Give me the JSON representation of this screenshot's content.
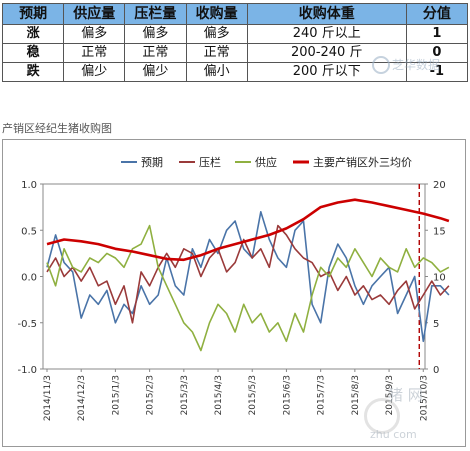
{
  "table": {
    "headers": [
      "预期",
      "供应量",
      "压栏量",
      "收购量",
      "收购体重",
      "分值"
    ],
    "rows": [
      [
        "涨",
        "偏多",
        "偏多",
        "偏多",
        "240 斤以上",
        "1"
      ],
      [
        "稳",
        "正常",
        "正常",
        "正常",
        "200-240 斤",
        "0"
      ],
      [
        "跌",
        "偏少",
        "偏少",
        "偏小",
        "200 斤以下",
        "-1"
      ]
    ]
  },
  "watermark": {
    "top_text": "芝华数据",
    "bottom_logo": "猪 网",
    "bottom_url": "zhu  com"
  },
  "chart_caption": "产销区经纪生猪收购图",
  "colors": {
    "forecast": "#4a74a8",
    "pressure": "#9a3a3a",
    "supply": "#8fb040",
    "price": "#cc0000",
    "header_bg": "#7bb4e6"
  },
  "chart_data": {
    "type": "line",
    "title": "",
    "x_tick_labels": [
      "2014/11/3",
      "2014/12/3",
      "2015/1/3",
      "2015/2/3",
      "2015/3/3",
      "2015/4/3",
      "2015/5/3",
      "2015/6/3",
      "2015/7/3",
      "2015/8/3",
      "2015/9/3",
      "2015/10/3"
    ],
    "y_left": {
      "range": [
        -1.0,
        1.0
      ],
      "ticks": [
        "1.0",
        "0.5",
        "0.0",
        "-0.5",
        "-1.0"
      ]
    },
    "y_right": {
      "range": [
        0,
        20
      ],
      "ticks": [
        "20",
        "15",
        "10",
        "5",
        "0"
      ]
    },
    "legend_position": "top",
    "grid": false,
    "marker_line": {
      "x": "2015/10/3",
      "style": "dashed"
    },
    "x_index_count": 12,
    "series": [
      {
        "name": "预期",
        "axis": "left",
        "color_key": "forecast",
        "x": [
          0,
          0.25,
          0.5,
          0.75,
          1,
          1.25,
          1.5,
          1.75,
          2,
          2.25,
          2.5,
          2.75,
          3,
          3.25,
          3.5,
          3.75,
          4,
          4.25,
          4.5,
          4.75,
          5,
          5.25,
          5.5,
          5.75,
          6,
          6.25,
          6.5,
          6.75,
          7,
          7.25,
          7.5,
          7.75,
          8,
          8.25,
          8.5,
          8.75,
          9,
          9.25,
          9.5,
          9.75,
          10,
          10.25,
          10.5,
          10.75,
          11,
          11.25,
          11.5,
          11.75
        ],
        "values": [
          0.1,
          0.45,
          0.15,
          0.05,
          -0.45,
          -0.2,
          -0.3,
          -0.15,
          -0.5,
          -0.3,
          -0.4,
          -0.1,
          -0.3,
          -0.2,
          0.2,
          -0.1,
          -0.2,
          0.3,
          0.1,
          0.4,
          0.25,
          0.5,
          0.6,
          0.3,
          0.2,
          0.7,
          0.4,
          0.2,
          0.1,
          0.5,
          0.6,
          -0.3,
          -0.5,
          0.1,
          0.35,
          0.2,
          -0.1,
          -0.3,
          -0.1,
          0.0,
          0.1,
          -0.4,
          -0.2,
          0.0,
          -0.7,
          -0.1,
          -0.1,
          -0.2
        ]
      },
      {
        "name": "压栏",
        "axis": "left",
        "color_key": "pressure",
        "x": [
          0,
          0.25,
          0.5,
          0.75,
          1,
          1.25,
          1.5,
          1.75,
          2,
          2.25,
          2.5,
          2.75,
          3,
          3.25,
          3.5,
          3.75,
          4,
          4.25,
          4.5,
          4.75,
          5,
          5.25,
          5.5,
          5.75,
          6,
          6.25,
          6.5,
          6.75,
          7,
          7.25,
          7.5,
          7.75,
          8,
          8.25,
          8.5,
          8.75,
          9,
          9.25,
          9.5,
          9.75,
          10,
          10.25,
          10.5,
          10.75,
          11,
          11.25,
          11.5,
          11.75
        ],
        "values": [
          0.05,
          0.2,
          0.0,
          0.1,
          -0.05,
          0.1,
          -0.1,
          -0.05,
          -0.3,
          -0.1,
          -0.5,
          0.05,
          -0.1,
          0.1,
          0.25,
          0.1,
          0.3,
          0.25,
          0.0,
          0.2,
          0.3,
          0.05,
          0.15,
          0.4,
          0.2,
          0.3,
          0.1,
          0.55,
          0.45,
          0.3,
          0.2,
          0.15,
          0.0,
          0.05,
          -0.15,
          0.0,
          -0.2,
          -0.1,
          -0.25,
          -0.2,
          -0.3,
          -0.15,
          -0.05,
          -0.35,
          -0.2,
          -0.05,
          -0.2,
          -0.1
        ]
      },
      {
        "name": "供应",
        "axis": "left",
        "color_key": "supply",
        "x": [
          0,
          0.25,
          0.5,
          0.75,
          1,
          1.25,
          1.5,
          1.75,
          2,
          2.25,
          2.5,
          2.75,
          3,
          3.25,
          3.5,
          3.75,
          4,
          4.25,
          4.5,
          4.75,
          5,
          5.25,
          5.5,
          5.75,
          6,
          6.25,
          6.5,
          6.75,
          7,
          7.25,
          7.5,
          7.75,
          8,
          8.25,
          8.5,
          8.75,
          9,
          9.25,
          9.5,
          9.75,
          10,
          10.25,
          10.5,
          10.75,
          11,
          11.25,
          11.5,
          11.75
        ],
        "values": [
          0.15,
          -0.1,
          0.3,
          0.1,
          0.05,
          0.2,
          0.15,
          0.25,
          0.2,
          0.1,
          0.3,
          0.35,
          0.55,
          0.1,
          -0.1,
          -0.3,
          -0.5,
          -0.6,
          -0.8,
          -0.5,
          -0.3,
          -0.4,
          -0.6,
          -0.3,
          -0.5,
          -0.4,
          -0.6,
          -0.5,
          -0.7,
          -0.4,
          -0.6,
          -0.2,
          0.1,
          0.0,
          0.2,
          0.1,
          0.3,
          0.15,
          0.0,
          0.2,
          0.1,
          0.05,
          0.3,
          0.1,
          0.2,
          0.15,
          0.05,
          0.1
        ]
      },
      {
        "name": "主要产销区外三均价",
        "axis": "right",
        "color_key": "price",
        "x": [
          0,
          0.5,
          1,
          1.5,
          2,
          2.5,
          3,
          3.5,
          4,
          4.5,
          5,
          5.5,
          6,
          6.5,
          7,
          7.5,
          8,
          8.5,
          9,
          9.5,
          10,
          10.5,
          11,
          11.5,
          11.75
        ],
        "values": [
          13.5,
          14.0,
          13.8,
          13.5,
          13.0,
          12.7,
          12.3,
          11.9,
          11.8,
          12.3,
          13.0,
          13.5,
          14.0,
          14.5,
          15.2,
          16.2,
          17.5,
          18.0,
          18.3,
          18.0,
          17.6,
          17.2,
          16.8,
          16.3,
          16.0
        ]
      }
    ]
  }
}
